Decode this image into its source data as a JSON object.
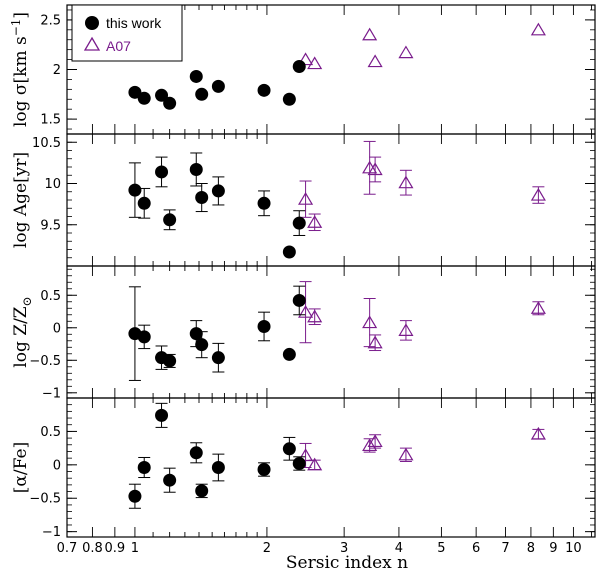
{
  "chart_data": {
    "type": "scatter",
    "xlabel": "Sersic index n",
    "xscale": "log",
    "xlim": [
      0.7,
      11.2
    ],
    "x_ticks": [
      0.7,
      0.8,
      0.9,
      1,
      2,
      3,
      4,
      5,
      6,
      7,
      8,
      9,
      10
    ],
    "x_tick_labels": [
      "0.7",
      "0.8",
      "0.9",
      "1",
      "2",
      "3",
      "4",
      "5",
      "6",
      "7",
      "8",
      "9",
      "10"
    ],
    "colors": {
      "this_work": "#000000",
      "a07": "#7a1c8c"
    },
    "legend": {
      "position": "top-left",
      "entries": [
        {
          "name": "this work",
          "marker": "filled-circle",
          "color": "#000000"
        },
        {
          "name": "A07",
          "marker": "open-triangle",
          "color": "#7a1c8c"
        }
      ]
    },
    "panels": [
      {
        "id": "sigma",
        "ylabel_parts": [
          "log σ[km s",
          "−1",
          "]"
        ],
        "ylim": [
          1.35,
          2.65
        ],
        "y_ticks": [
          1.5,
          2,
          2.5
        ],
        "y_tick_labels": [
          "1.5",
          "2",
          "2.5"
        ],
        "this_work": {
          "x": [
            1.0,
            1.05,
            1.15,
            1.2,
            1.38,
            1.42,
            1.55,
            1.97,
            2.25,
            2.37
          ],
          "y": [
            1.77,
            1.71,
            1.74,
            1.66,
            1.93,
            1.75,
            1.83,
            1.79,
            1.7,
            2.03
          ]
        },
        "a07": {
          "x": [
            2.45,
            2.57,
            3.43,
            3.53,
            4.15,
            8.32
          ],
          "y": [
            2.1,
            2.06,
            2.35,
            2.08,
            2.17,
            2.4
          ]
        }
      },
      {
        "id": "age",
        "ylabel_parts": [
          "log Age[yr]"
        ],
        "ylim": [
          9.0,
          10.6
        ],
        "y_ticks": [
          9.5,
          10,
          10.5
        ],
        "y_tick_labels": [
          "9.5",
          "10",
          "10.5"
        ],
        "this_work": {
          "x": [
            1.0,
            1.05,
            1.15,
            1.2,
            1.38,
            1.42,
            1.55,
            1.97,
            2.25,
            2.37
          ],
          "y": [
            9.92,
            9.76,
            10.14,
            9.56,
            10.17,
            9.83,
            9.91,
            9.76,
            9.17,
            9.52
          ],
          "err": [
            0.33,
            0.18,
            0.18,
            0.12,
            0.2,
            0.17,
            0.17,
            0.15,
            0.0,
            0.15
          ]
        },
        "a07": {
          "x": [
            2.45,
            2.57,
            3.43,
            3.53,
            4.15,
            8.32
          ],
          "y": [
            9.81,
            9.53,
            10.19,
            10.17,
            10.01,
            9.86
          ],
          "err": [
            0.22,
            0.1,
            0.32,
            0.15,
            0.15,
            0.1
          ]
        }
      },
      {
        "id": "metallicity",
        "ylabel_parts": [
          "log Z/Z",
          "⊙"
        ],
        "ylim": [
          -1.08,
          0.95
        ],
        "y_ticks": [
          -1,
          -0.5,
          0,
          0.5
        ],
        "y_tick_labels": [
          "−1",
          "−0.5",
          "0",
          "0.5"
        ],
        "this_work": {
          "x": [
            1.0,
            1.05,
            1.15,
            1.2,
            1.38,
            1.42,
            1.55,
            1.97,
            2.25,
            2.37
          ],
          "y": [
            -0.09,
            -0.14,
            -0.46,
            -0.51,
            -0.09,
            -0.26,
            -0.46,
            0.02,
            -0.41,
            0.42
          ],
          "err": [
            0.72,
            0.18,
            0.18,
            0.1,
            0.2,
            0.2,
            0.22,
            0.22,
            0.0,
            0.22
          ]
        },
        "a07": {
          "x": [
            2.45,
            2.57,
            3.43,
            3.53,
            4.15,
            8.32
          ],
          "y": [
            0.24,
            0.17,
            0.08,
            -0.23,
            -0.04,
            0.3
          ],
          "err": [
            0.47,
            0.12,
            0.37,
            0.12,
            0.15,
            0.1
          ]
        }
      },
      {
        "id": "alpha_fe",
        "ylabel_parts": [
          "[α/Fe]"
        ],
        "ylim": [
          -1.08,
          1.0
        ],
        "y_ticks": [
          -1,
          -0.5,
          0,
          0.5
        ],
        "y_tick_labels": [
          "−1",
          "−0.5",
          "0",
          "0.5"
        ],
        "this_work": {
          "x": [
            1.0,
            1.05,
            1.15,
            1.2,
            1.38,
            1.42,
            1.55,
            1.97,
            2.25,
            2.37
          ],
          "y": [
            -0.47,
            -0.04,
            0.74,
            -0.23,
            0.18,
            -0.39,
            -0.04,
            -0.07,
            0.24,
            0.02
          ],
          "err": [
            0.18,
            0.15,
            0.18,
            0.18,
            0.15,
            0.1,
            0.2,
            0.1,
            0.17,
            0.1
          ]
        },
        "a07": {
          "x": [
            2.45,
            2.57,
            3.43,
            3.53,
            4.15,
            8.32
          ],
          "y": [
            0.14,
            0.0,
            0.29,
            0.35,
            0.15,
            0.46
          ],
          "err": [
            0.18,
            0.07,
            0.1,
            0.1,
            0.1,
            0.07
          ]
        }
      }
    ]
  }
}
